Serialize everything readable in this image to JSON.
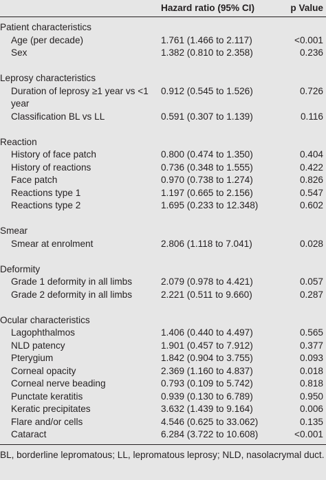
{
  "header": {
    "hazard_ratio": "Hazard ratio (95% CI)",
    "p_value": "p Value"
  },
  "sections": [
    {
      "title": "Patient characteristics",
      "rows": [
        {
          "label": "Age (per decade)",
          "hr": "1.761 (1.466 to 2.117)",
          "p": "<0.001"
        },
        {
          "label": "Sex",
          "hr": "1.382 (0.810 to 2.358)",
          "p": "0.236"
        }
      ]
    },
    {
      "title": "Leprosy characteristics",
      "rows": [
        {
          "label": "Duration of leprosy ≥1 year vs <1 year",
          "hr": "0.912 (0.545 to 1.526)",
          "p": "0.726"
        },
        {
          "label": "Classification BL vs LL",
          "hr": "0.591 (0.307 to 1.139)",
          "p": "0.116"
        }
      ]
    },
    {
      "title": "Reaction",
      "rows": [
        {
          "label": "History of face patch",
          "hr": "0.800 (0.474 to 1.350)",
          "p": "0.404"
        },
        {
          "label": "History of reactions",
          "hr": "0.736 (0.348 to 1.555)",
          "p": "0.422"
        },
        {
          "label": "Face patch",
          "hr": "0.970 (0.738 to 1.274)",
          "p": "0.826"
        },
        {
          "label": "Reactions type 1",
          "hr": "1.197 (0.665 to 2.156)",
          "p": "0.547"
        },
        {
          "label": "Reactions type 2",
          "hr": "1.695 (0.233 to 12.348)",
          "p": "0.602"
        }
      ]
    },
    {
      "title": "Smear",
      "rows": [
        {
          "label": "Smear at enrolment",
          "hr": "2.806 (1.118 to 7.041)",
          "p": "0.028"
        }
      ]
    },
    {
      "title": "Deformity",
      "rows": [
        {
          "label": "Grade 1 deformity in all limbs",
          "hr": "2.079 (0.978 to 4.421)",
          "p": "0.057"
        },
        {
          "label": "Grade 2 deformity in all limbs",
          "hr": "2.221 (0.511 to 9.660)",
          "p": "0.287"
        }
      ]
    },
    {
      "title": "Ocular characteristics",
      "rows": [
        {
          "label": "Lagophthalmos",
          "hr": "1.406 (0.440 to 4.497)",
          "p": "0.565"
        },
        {
          "label": "NLD patency",
          "hr": "1.901 (0.457 to 7.912)",
          "p": "0.377"
        },
        {
          "label": "Pterygium",
          "hr": "1.842 (0.904 to 3.755)",
          "p": "0.093"
        },
        {
          "label": "Corneal opacity",
          "hr": "2.369 (1.160 to 4.837)",
          "p": "0.018"
        },
        {
          "label": "Corneal nerve beading",
          "hr": "0.793 (0.109 to 5.742)",
          "p": "0.818"
        },
        {
          "label": "Punctate keratitis",
          "hr": "0.939 (0.130 to 6.789)",
          "p": "0.950"
        },
        {
          "label": "Keratic precipitates",
          "hr": "3.632 (1.439 to 9.164)",
          "p": "0.006"
        },
        {
          "label": "Flare and/or cells",
          "hr": "4.546 (0.625 to 33.062)",
          "p": "0.135"
        },
        {
          "label": "Cataract",
          "hr": "6.284 (3.722 to 10.608)",
          "p": "<0.001"
        }
      ]
    }
  ],
  "footnote": "BL, borderline lepromatous; LL, lepromatous leprosy; NLD, nasolacrymal duct."
}
